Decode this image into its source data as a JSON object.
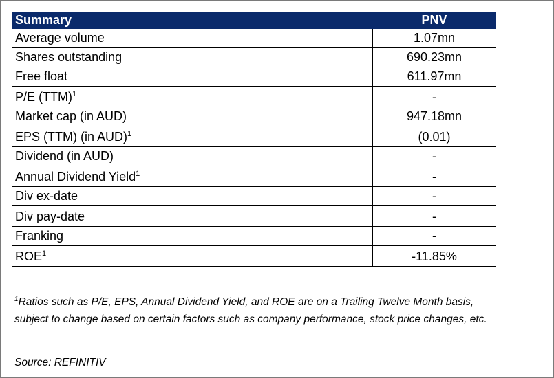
{
  "table": {
    "header": {
      "label": "Summary",
      "ticker": "PNV"
    },
    "rows": [
      {
        "label": "Average volume",
        "sup": "",
        "value": "1.07mn"
      },
      {
        "label": "Shares outstanding",
        "sup": "",
        "value": "690.23mn"
      },
      {
        "label": "Free float",
        "sup": "",
        "value": "611.97mn"
      },
      {
        "label": "P/E (TTM)",
        "sup": "1",
        "value": "-"
      },
      {
        "label": "Market cap (in AUD)",
        "sup": "",
        "value": "947.18mn"
      },
      {
        "label": "EPS (TTM) (in AUD)",
        "sup": "1",
        "value": "(0.01)"
      },
      {
        "label": "Dividend (in AUD)",
        "sup": "",
        "value": "-"
      },
      {
        "label": "Annual Dividend Yield",
        "sup": "1",
        "value": "-"
      },
      {
        "label": "Div ex-date",
        "sup": "",
        "value": "-"
      },
      {
        "label": "Div pay-date",
        "sup": "",
        "value": "-"
      },
      {
        "label": "Franking",
        "sup": "",
        "value": "-"
      },
      {
        "label": "ROE",
        "sup": "1",
        "value": "-11.85%"
      }
    ]
  },
  "footnote": {
    "marker": "1",
    "line1": "Ratios such as P/E, EPS, Annual Dividend Yield, and ROE are on a Trailing Twelve Month basis,",
    "line2": "subject to change based on certain factors such as company performance, stock price changes, etc."
  },
  "source": "Source: REFINITIV"
}
